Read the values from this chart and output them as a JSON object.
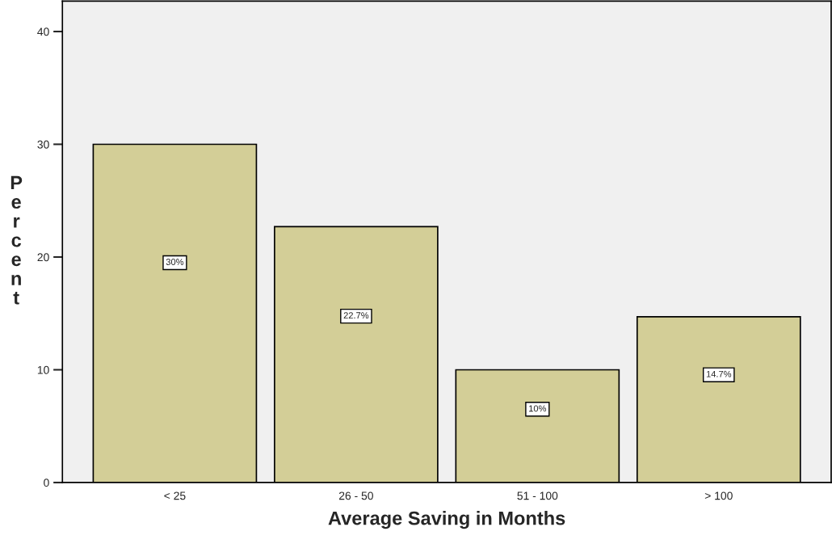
{
  "chart_data": {
    "type": "bar",
    "xlabel": "Average Saving in Months",
    "ylabel": "Percent",
    "categories": [
      "< 25",
      "26 - 50",
      "51 - 100",
      "> 100"
    ],
    "values": [
      30,
      22.7,
      10,
      14.7
    ],
    "color": "#d3ce97",
    "value_labels": [
      "30%",
      "22.7%",
      "10%",
      "14.7%"
    ],
    "ylim": [
      0,
      42.7
    ],
    "yticks": [
      0,
      10,
      20,
      30,
      40
    ],
    "grid": false,
    "legend": false
  }
}
